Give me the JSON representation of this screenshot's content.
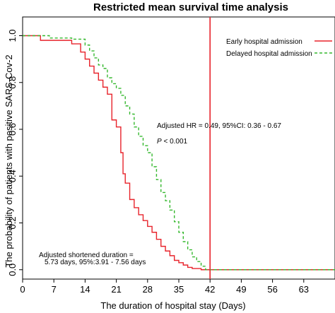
{
  "chart_data": {
    "type": "line",
    "title": "Restricted mean survival time analysis",
    "xlabel": "The duration of hospital stay (Days)",
    "ylabel": "The probability of patients with positive SARS-Cov-2",
    "xlim": [
      0,
      70
    ],
    "ylim": [
      -0.04,
      1.08
    ],
    "x_ticks": [
      "0",
      "7",
      "14",
      "21",
      "28",
      "35",
      "42",
      "49",
      "56",
      "63"
    ],
    "y_ticks": [
      "0.0",
      "0.2",
      "0.4",
      "0.6",
      "0.8",
      "1.0"
    ],
    "grid": false,
    "legend_position": "top-right",
    "series": [
      {
        "name": "Early hospital admission",
        "color": "#e8232b",
        "style": "solid",
        "points": [
          [
            0,
            1.0
          ],
          [
            4,
            1.0
          ],
          [
            4,
            0.98
          ],
          [
            11,
            0.98
          ],
          [
            11,
            0.965
          ],
          [
            13,
            0.965
          ],
          [
            13,
            0.93
          ],
          [
            14,
            0.93
          ],
          [
            14,
            0.9
          ],
          [
            15,
            0.9
          ],
          [
            15,
            0.87
          ],
          [
            16,
            0.87
          ],
          [
            16,
            0.84
          ],
          [
            17,
            0.84
          ],
          [
            17,
            0.81
          ],
          [
            18,
            0.81
          ],
          [
            18,
            0.78
          ],
          [
            19,
            0.78
          ],
          [
            19,
            0.75
          ],
          [
            20,
            0.75
          ],
          [
            20,
            0.64
          ],
          [
            21,
            0.64
          ],
          [
            21,
            0.61
          ],
          [
            22,
            0.61
          ],
          [
            22,
            0.5
          ],
          [
            22.5,
            0.5
          ],
          [
            22.5,
            0.41
          ],
          [
            23,
            0.41
          ],
          [
            23,
            0.37
          ],
          [
            24,
            0.37
          ],
          [
            24,
            0.3
          ],
          [
            25,
            0.3
          ],
          [
            25,
            0.265
          ],
          [
            26,
            0.265
          ],
          [
            26,
            0.235
          ],
          [
            27,
            0.235
          ],
          [
            27,
            0.21
          ],
          [
            28,
            0.21
          ],
          [
            28,
            0.185
          ],
          [
            29,
            0.185
          ],
          [
            29,
            0.16
          ],
          [
            30,
            0.16
          ],
          [
            30,
            0.13
          ],
          [
            31,
            0.13
          ],
          [
            31,
            0.1
          ],
          [
            32,
            0.1
          ],
          [
            32,
            0.08
          ],
          [
            33,
            0.08
          ],
          [
            33,
            0.06
          ],
          [
            34,
            0.06
          ],
          [
            34,
            0.04
          ],
          [
            35,
            0.04
          ],
          [
            35,
            0.03
          ],
          [
            36,
            0.03
          ],
          [
            36,
            0.02
          ],
          [
            37,
            0.02
          ],
          [
            37,
            0.01
          ],
          [
            38,
            0.01
          ],
          [
            38,
            0.005
          ],
          [
            40,
            0.005
          ],
          [
            40,
            0.0
          ],
          [
            70,
            0.0
          ]
        ]
      },
      {
        "name": "Delayed hospital admission",
        "color": "#35b82e",
        "style": "dashed",
        "points": [
          [
            0,
            1.0
          ],
          [
            6,
            1.0
          ],
          [
            6,
            0.99
          ],
          [
            11,
            0.99
          ],
          [
            11,
            0.985
          ],
          [
            14,
            0.985
          ],
          [
            14,
            0.96
          ],
          [
            15,
            0.96
          ],
          [
            15,
            0.935
          ],
          [
            16,
            0.935
          ],
          [
            16,
            0.905
          ],
          [
            17,
            0.905
          ],
          [
            17,
            0.875
          ],
          [
            18,
            0.875
          ],
          [
            18,
            0.86
          ],
          [
            19,
            0.86
          ],
          [
            19,
            0.82
          ],
          [
            20,
            0.82
          ],
          [
            20,
            0.795
          ],
          [
            21,
            0.795
          ],
          [
            21,
            0.775
          ],
          [
            22,
            0.775
          ],
          [
            22,
            0.745
          ],
          [
            23,
            0.745
          ],
          [
            23,
            0.7
          ],
          [
            24,
            0.7
          ],
          [
            24,
            0.665
          ],
          [
            25,
            0.665
          ],
          [
            25,
            0.61
          ],
          [
            26,
            0.61
          ],
          [
            26,
            0.57
          ],
          [
            27,
            0.57
          ],
          [
            27,
            0.53
          ],
          [
            28,
            0.53
          ],
          [
            28,
            0.5
          ],
          [
            29,
            0.5
          ],
          [
            29,
            0.44
          ],
          [
            30,
            0.44
          ],
          [
            30,
            0.385
          ],
          [
            31,
            0.385
          ],
          [
            31,
            0.33
          ],
          [
            32,
            0.33
          ],
          [
            32,
            0.295
          ],
          [
            33,
            0.295
          ],
          [
            33,
            0.255
          ],
          [
            34,
            0.255
          ],
          [
            34,
            0.205
          ],
          [
            35,
            0.205
          ],
          [
            35,
            0.16
          ],
          [
            36,
            0.16
          ],
          [
            36,
            0.12
          ],
          [
            37,
            0.12
          ],
          [
            37,
            0.085
          ],
          [
            38,
            0.085
          ],
          [
            38,
            0.055
          ],
          [
            39,
            0.055
          ],
          [
            39,
            0.035
          ],
          [
            40,
            0.035
          ],
          [
            40,
            0.015
          ],
          [
            41,
            0.015
          ],
          [
            41,
            0.0
          ],
          [
            70,
            0.0
          ]
        ]
      }
    ],
    "reference_line": {
      "x": 42,
      "color": "#e8232b"
    },
    "annotations": {
      "hr": "Adjusted HR = 0.49, 95%CI: 0.36 - 0.67",
      "p_label": "P",
      "p_value": " < 0.001",
      "duration_line1": "Adjusted  shortened duration =",
      "duration_line2": "5.73 days, 95%:3.91 - 7.56 days"
    }
  }
}
